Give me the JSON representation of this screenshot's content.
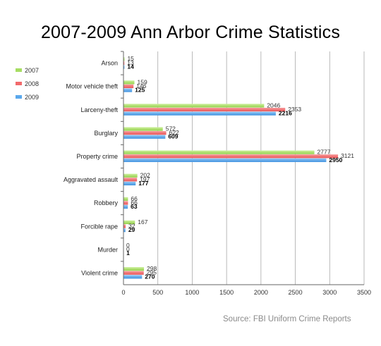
{
  "title": "2007-2009 Ann Arbor Crime Statistics",
  "source": "Source: FBI Uniform Crime Reports",
  "colors": {
    "2007": "#a6dd62",
    "2008": "#f26a6c",
    "2009": "#5aa8ec"
  },
  "chart_data": {
    "type": "bar",
    "orientation": "horizontal",
    "categories": [
      "Arson",
      "Motor vehicle theft",
      "Larceny-theft",
      "Burglary",
      "Property crime",
      "Aggravated assault",
      "Robbery",
      "Forcible rape",
      "Murder",
      "Violent crime"
    ],
    "series": [
      {
        "name": "2007",
        "values": [
          15,
          159,
          2046,
          572,
          2777,
          202,
          66,
          167,
          0,
          298
        ]
      },
      {
        "name": "2008",
        "values": [
          13,
          146,
          2353,
          622,
          3121,
          197,
          66,
          32,
          0,
          295
        ]
      },
      {
        "name": "2009",
        "values": [
          14,
          125,
          2216,
          609,
          2950,
          177,
          63,
          29,
          1,
          270
        ]
      }
    ],
    "xlim": [
      0,
      3500
    ],
    "xticks": [
      0,
      500,
      1000,
      1500,
      2000,
      2500,
      3000,
      3500
    ],
    "grid": "vertical",
    "legend": "top-left",
    "bold_series": "2009"
  }
}
